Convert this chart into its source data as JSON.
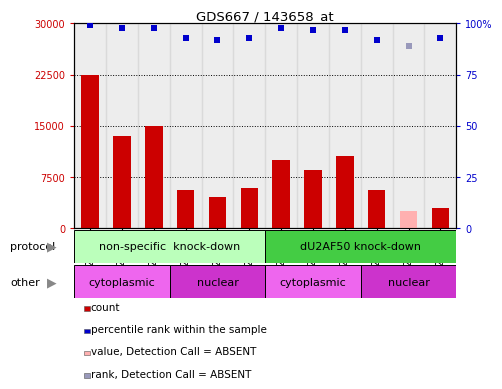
{
  "title": "GDS667 / 143658_at",
  "samples": [
    "GSM21848",
    "GSM21850",
    "GSM21852",
    "GSM21849",
    "GSM21851",
    "GSM21853",
    "GSM21854",
    "GSM21856",
    "GSM21858",
    "GSM21855",
    "GSM21857",
    "GSM21859"
  ],
  "counts": [
    22500,
    13500,
    15000,
    5500,
    4500,
    5800,
    10000,
    8500,
    10500,
    5500,
    2500,
    3000
  ],
  "counts_absent": [
    false,
    false,
    false,
    false,
    false,
    false,
    false,
    false,
    false,
    false,
    true,
    false
  ],
  "percentile_ranks": [
    99,
    98,
    98,
    93,
    92,
    93,
    98,
    97,
    97,
    92,
    89,
    93
  ],
  "rank_absent": [
    false,
    false,
    false,
    false,
    false,
    false,
    false,
    false,
    false,
    false,
    true,
    false
  ],
  "ylim_left": [
    0,
    30000
  ],
  "ylim_right": [
    0,
    100
  ],
  "yticks_left": [
    0,
    7500,
    15000,
    22500,
    30000
  ],
  "yticks_right": [
    0,
    25,
    50,
    75,
    100
  ],
  "bar_color_normal": "#cc0000",
  "bar_color_absent": "#ffb0b0",
  "rank_color_normal": "#0000cc",
  "rank_color_absent": "#9999bb",
  "protocol_groups": [
    {
      "label": "non-specific  knock-down",
      "start": 0,
      "end": 6,
      "color": "#bbffbb"
    },
    {
      "label": "dU2AF50 knock-down",
      "start": 6,
      "end": 12,
      "color": "#44cc44"
    }
  ],
  "other_groups": [
    {
      "label": "cytoplasmic",
      "start": 0,
      "end": 3,
      "color": "#ee66ee"
    },
    {
      "label": "nuclear",
      "start": 3,
      "end": 6,
      "color": "#cc33cc"
    },
    {
      "label": "cytoplasmic",
      "start": 6,
      "end": 9,
      "color": "#ee66ee"
    },
    {
      "label": "nuclear",
      "start": 9,
      "end": 12,
      "color": "#cc33cc"
    }
  ],
  "protocol_label": "protocol",
  "other_label": "other",
  "legend_items": [
    {
      "label": "count",
      "color": "#cc0000"
    },
    {
      "label": "percentile rank within the sample",
      "color": "#0000cc"
    },
    {
      "label": "value, Detection Call = ABSENT",
      "color": "#ffb0b0"
    },
    {
      "label": "rank, Detection Call = ABSENT",
      "color": "#9999bb"
    }
  ],
  "tick_label_fontsize": 7,
  "bar_width": 0.55,
  "rank_marker_size": 5,
  "col_bg_color": "#cccccc",
  "white_bg": "#ffffff"
}
